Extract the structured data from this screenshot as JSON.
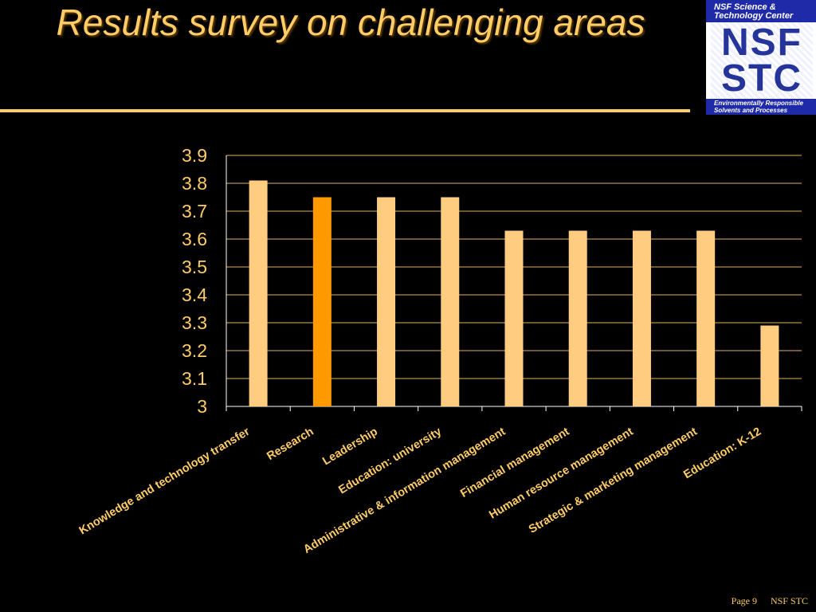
{
  "slide": {
    "title": "Results survey on challenging areas",
    "footer": {
      "page": "Page 9",
      "org": "NSF STC"
    }
  },
  "logo": {
    "line1": "NSF Science &",
    "line2": "Technology Center",
    "mark1": "NSF",
    "mark2": "STC",
    "caption1": "Environmentally Responsible",
    "caption2": "Solvents and Processes"
  },
  "colors": {
    "background": "#000000",
    "text": "#FFCC66",
    "bar": "#FFCC80",
    "bar_highlight": "#FF9900",
    "grid": "#E0B060",
    "axis": "#FFFFFF"
  },
  "chart_data": {
    "type": "bar",
    "title": "",
    "xlabel": "",
    "ylabel": "",
    "categories": [
      "Knowledge and technology transfer",
      "Research",
      "Leadership",
      "Education: university",
      "Administrative & information management",
      "Financial management",
      "Human resource management",
      "Strategic & marketing management",
      "Education: K-12"
    ],
    "values": [
      3.81,
      3.75,
      3.75,
      3.75,
      3.63,
      3.63,
      3.63,
      3.63,
      3.29
    ],
    "highlight_index": 1,
    "ylim": [
      3,
      3.9
    ],
    "yticks": [
      "3",
      "3.1",
      "3.2",
      "3.3",
      "3.4",
      "3.5",
      "3.6",
      "3.7",
      "3.8",
      "3.9"
    ],
    "grid": true,
    "legend": "none"
  }
}
